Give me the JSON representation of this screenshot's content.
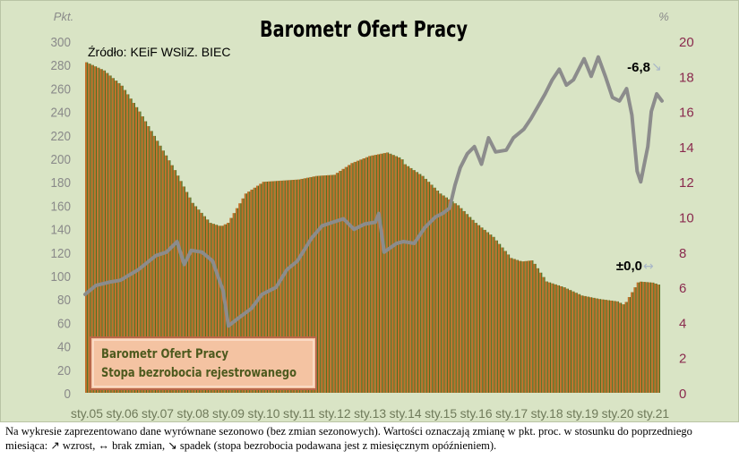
{
  "chart_data": {
    "type": "bar+line",
    "title": "Barometr Ofert Pracy",
    "source": "Źródło: KEiF WSliZ. BIEC",
    "left_axis_unit": "Pkt.",
    "right_axis_unit": "%",
    "left_ylim": [
      0,
      300
    ],
    "left_ticks": [
      0,
      20,
      40,
      60,
      80,
      100,
      120,
      140,
      160,
      180,
      200,
      220,
      240,
      260,
      280,
      300
    ],
    "right_ylim": [
      0,
      20
    ],
    "right_ticks": [
      0,
      2,
      4,
      6,
      8,
      10,
      12,
      14,
      16,
      18,
      20
    ],
    "x_tick_labels": [
      "sty.05",
      "sty.06",
      "sty.07",
      "sty.08",
      "sty.09",
      "sty.10",
      "sty.11",
      "sty.12",
      "sty.13",
      "sty.14",
      "sty.15",
      "sty.16",
      "sty.17",
      "sty.18",
      "sty.19",
      "sty.20",
      "sty.21"
    ],
    "x_start_year": 2005,
    "x_end_year": 2021,
    "series": [
      {
        "name": "Barometr Ofert Pracy",
        "kind": "bar",
        "axis": "left",
        "color": "#c2702a",
        "anchors": [
          [
            2005.0,
            282
          ],
          [
            2005.5,
            275
          ],
          [
            2006.0,
            262
          ],
          [
            2006.5,
            240
          ],
          [
            2007.0,
            215
          ],
          [
            2007.5,
            190
          ],
          [
            2008.0,
            162
          ],
          [
            2008.5,
            145
          ],
          [
            2008.8,
            142
          ],
          [
            2009.0,
            145
          ],
          [
            2009.5,
            170
          ],
          [
            2010.0,
            180
          ],
          [
            2010.5,
            181
          ],
          [
            2011.0,
            182
          ],
          [
            2011.5,
            185
          ],
          [
            2012.0,
            186
          ],
          [
            2012.5,
            196
          ],
          [
            2013.0,
            202
          ],
          [
            2013.5,
            205
          ],
          [
            2013.9,
            200
          ],
          [
            2014.0,
            195
          ],
          [
            2014.5,
            185
          ],
          [
            2015.0,
            170
          ],
          [
            2015.5,
            160
          ],
          [
            2016.0,
            145
          ],
          [
            2016.5,
            133
          ],
          [
            2017.0,
            115
          ],
          [
            2017.3,
            112
          ],
          [
            2017.6,
            113
          ],
          [
            2018.0,
            95
          ],
          [
            2018.5,
            90
          ],
          [
            2019.0,
            83
          ],
          [
            2019.5,
            80
          ],
          [
            2020.0,
            78
          ],
          [
            2020.2,
            75
          ],
          [
            2020.4,
            85
          ],
          [
            2020.6,
            95
          ],
          [
            2021.0,
            94
          ],
          [
            2021.2,
            92
          ]
        ],
        "end_label": "±0,0",
        "end_arrow": "↔"
      },
      {
        "name": "Stopa bezrobocia rejestrowanego",
        "kind": "line",
        "axis": "right",
        "color": "#8c8c8c",
        "values": [
          [
            2005.0,
            5.6
          ],
          [
            2005.3,
            6.1
          ],
          [
            2005.7,
            6.3
          ],
          [
            2006.0,
            6.4
          ],
          [
            2006.5,
            7.0
          ],
          [
            2007.0,
            7.8
          ],
          [
            2007.3,
            8.0
          ],
          [
            2007.6,
            8.6
          ],
          [
            2007.8,
            7.3
          ],
          [
            2008.0,
            8.1
          ],
          [
            2008.3,
            8.0
          ],
          [
            2008.6,
            7.5
          ],
          [
            2008.9,
            5.8
          ],
          [
            2009.05,
            3.8
          ],
          [
            2009.3,
            4.2
          ],
          [
            2009.7,
            4.8
          ],
          [
            2010.0,
            5.6
          ],
          [
            2010.4,
            6.0
          ],
          [
            2010.7,
            7.0
          ],
          [
            2011.0,
            7.5
          ],
          [
            2011.4,
            8.8
          ],
          [
            2011.7,
            9.5
          ],
          [
            2012.0,
            9.7
          ],
          [
            2012.3,
            9.9
          ],
          [
            2012.6,
            9.3
          ],
          [
            2012.9,
            9.6
          ],
          [
            2013.2,
            9.7
          ],
          [
            2013.3,
            10.2
          ],
          [
            2013.45,
            8.0
          ],
          [
            2013.8,
            8.5
          ],
          [
            2014.0,
            8.6
          ],
          [
            2014.3,
            8.5
          ],
          [
            2014.6,
            9.4
          ],
          [
            2014.9,
            10.0
          ],
          [
            2015.1,
            10.2
          ],
          [
            2015.3,
            10.5
          ],
          [
            2015.45,
            11.8
          ],
          [
            2015.6,
            12.8
          ],
          [
            2015.8,
            13.6
          ],
          [
            2016.0,
            14.0
          ],
          [
            2016.2,
            13.0
          ],
          [
            2016.4,
            14.5
          ],
          [
            2016.6,
            13.7
          ],
          [
            2016.9,
            13.8
          ],
          [
            2017.1,
            14.5
          ],
          [
            2017.4,
            15.0
          ],
          [
            2017.6,
            15.6
          ],
          [
            2017.8,
            16.3
          ],
          [
            2018.0,
            17.0
          ],
          [
            2018.2,
            17.8
          ],
          [
            2018.4,
            18.4
          ],
          [
            2018.6,
            17.5
          ],
          [
            2018.8,
            17.8
          ],
          [
            2019.0,
            18.6
          ],
          [
            2019.1,
            19.0
          ],
          [
            2019.3,
            18.0
          ],
          [
            2019.5,
            19.1
          ],
          [
            2019.7,
            18.0
          ],
          [
            2019.9,
            16.8
          ],
          [
            2020.1,
            16.6
          ],
          [
            2020.3,
            17.3
          ],
          [
            2020.45,
            15.8
          ],
          [
            2020.6,
            12.6
          ],
          [
            2020.7,
            12.0
          ],
          [
            2020.9,
            14.0
          ],
          [
            2021.0,
            16.0
          ],
          [
            2021.15,
            17.0
          ],
          [
            2021.3,
            16.6
          ]
        ],
        "end_label": "-6,8",
        "end_arrow": "↘"
      }
    ],
    "legend": [
      "Barometr Ofert Pracy",
      "Stopa bezrobocia rejestrowanego"
    ],
    "legend_placement": "bottom-left"
  },
  "colors": {
    "background": "#d9e4c5",
    "bar_fill": "#c2702a",
    "bar_stripe": "#4f6e22",
    "line": "#8c8c8c",
    "left_axis_text": "#8a8a8a",
    "right_axis_text": "#8a2a4e",
    "legend_fill": "#f4c3a2",
    "legend_text": "#4d5a1e"
  },
  "footnote": {
    "text": "Na wykresie zaprezentowano dane wyrównane sezonowo (bez zmian sezonowych). Wartości oznaczają zmianę w pkt. proc. w stosunku do poprzedniego miesiąca: ↗ wzrost, ↔ brak zmian, ↘ spadek (stopa bezrobocia podawana jest z miesięcznym opóźnieniem)."
  }
}
